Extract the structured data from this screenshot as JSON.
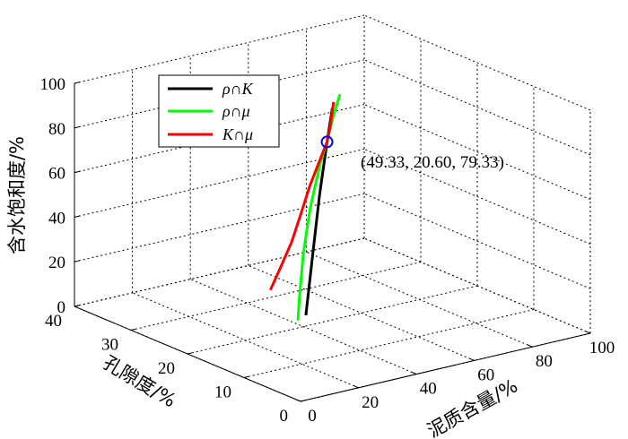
{
  "chart_data": {
    "type": "line3d",
    "xlabel": "泥质含量/%",
    "ylabel": "孔隙度/%",
    "zlabel": "含水饱和度/%",
    "xlim": [
      0,
      100
    ],
    "ylim": [
      0,
      40
    ],
    "zlim": [
      0,
      100
    ],
    "xticks": [
      "0",
      "20",
      "40",
      "60",
      "80",
      "100"
    ],
    "yticks": [
      "0",
      "10",
      "20",
      "30",
      "40"
    ],
    "zticks": [
      "0",
      "20",
      "40",
      "60",
      "80",
      "100"
    ],
    "grid": true,
    "legend": {
      "placement": "top-left",
      "entries": [
        {
          "label": "ρ∩K",
          "color": "#000000"
        },
        {
          "label": "ρ∩μ",
          "color": "#00ff00"
        },
        {
          "label": "K∩μ",
          "color": "#ff0000"
        }
      ]
    },
    "series": [
      {
        "name": "ρ∩K",
        "color": "#000000",
        "points": [
          [
            46.5,
            22.9,
            0
          ],
          [
            47.5,
            22.1,
            30
          ],
          [
            48.3,
            21.4,
            55
          ],
          [
            49.33,
            20.6,
            79.33
          ],
          [
            50.0,
            20.0,
            95
          ]
        ]
      },
      {
        "name": "ρ∩μ",
        "color": "#00ff00",
        "points": [
          [
            42.0,
            22.0,
            0
          ],
          [
            42.5,
            22.0,
            10
          ],
          [
            43.5,
            21.8,
            30
          ],
          [
            45.5,
            21.6,
            50
          ],
          [
            47.8,
            21.0,
            70
          ],
          [
            49.33,
            20.6,
            79.33
          ],
          [
            51.0,
            20.4,
            90
          ],
          [
            53.0,
            20.2,
            100
          ]
        ]
      },
      {
        "name": "K∩μ",
        "color": "#ff0000",
        "points": [
          [
            52.0,
            32.0,
            0
          ],
          [
            52.0,
            30.5,
            10
          ],
          [
            52.5,
            28.5,
            25
          ],
          [
            51.8,
            26.5,
            40
          ],
          [
            51.0,
            24.5,
            55
          ],
          [
            50.3,
            22.5,
            68
          ],
          [
            49.33,
            20.6,
            79.33
          ],
          [
            48.5,
            19.6,
            88
          ],
          [
            47.5,
            18.5,
            100
          ]
        ]
      }
    ],
    "marker": {
      "point": [
        49.33,
        20.6,
        79.33
      ],
      "color": "#0000ff",
      "shape": "circle"
    },
    "annotation": "(49.33, 20.60, 79.33)"
  }
}
